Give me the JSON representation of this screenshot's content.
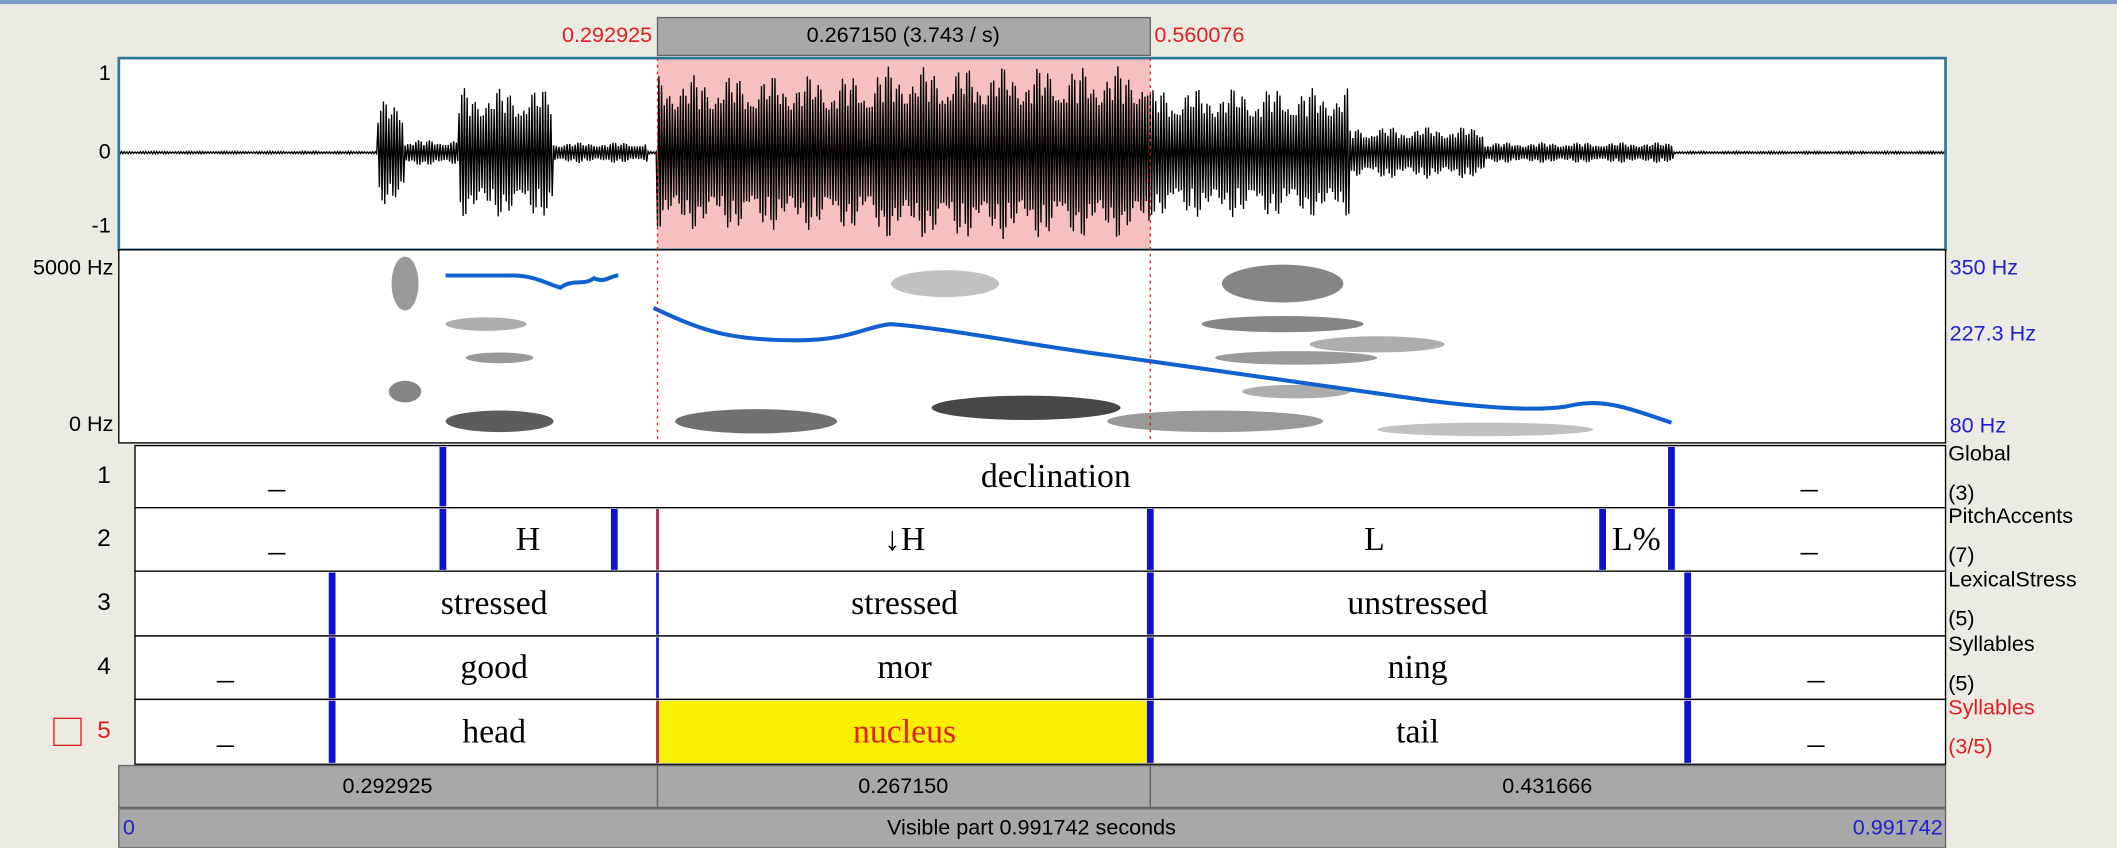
{
  "selection": {
    "start": "0.292925",
    "duration": "0.267150 (3.743 / s)",
    "end": "0.560076"
  },
  "waveform": {
    "yticks": [
      "1",
      "0",
      "-1"
    ]
  },
  "spectrogram": {
    "left_labels": [
      "5000 Hz",
      "0 Hz"
    ],
    "right_labels": [
      "350 Hz",
      "227.3 Hz",
      "80 Hz"
    ]
  },
  "tiers": [
    {
      "number": "1",
      "name": "Global",
      "count": "(3)",
      "intervals": [
        "_",
        "declination",
        "_"
      ]
    },
    {
      "number": "2",
      "name": "PitchAccents",
      "count": "(7)",
      "intervals": [
        "_",
        "H",
        "↓H",
        "L",
        "L%",
        "_"
      ]
    },
    {
      "number": "3",
      "name": "LexicalStress",
      "count": "(5)",
      "intervals": [
        "stressed",
        "stressed",
        "unstressed"
      ]
    },
    {
      "number": "4",
      "name": "Syllables",
      "count": "(5)",
      "intervals": [
        "_",
        "good",
        "mor",
        "ning",
        "_"
      ]
    },
    {
      "number": "5",
      "name": "Syllables",
      "count": "(3/5)",
      "intervals": [
        "_",
        "head",
        "nucleus",
        "tail",
        "_"
      ]
    }
  ],
  "durations": [
    "0.292925",
    "0.267150",
    "0.431666"
  ],
  "footer": {
    "start": "0",
    "visible": "Visible part 0.991742 seconds",
    "end": "0.991742"
  }
}
